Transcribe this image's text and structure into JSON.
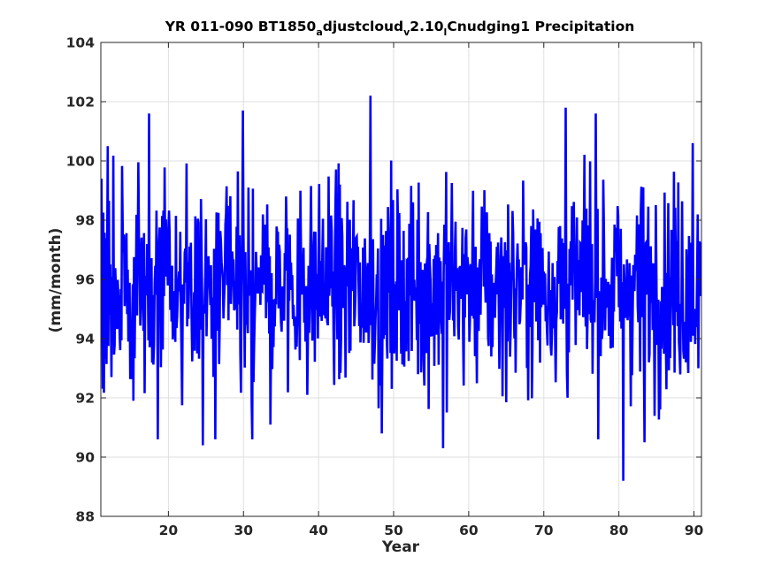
{
  "chart_data": {
    "type": "line",
    "title_parts": {
      "p1": "YR 011-090 BT1850",
      "s1": "a",
      "p2": "djustcloud",
      "s2": "v",
      "p3": "2.10",
      "s3": "l",
      "p4": "Cnudging1 Precipitation"
    },
    "xlabel": "Year",
    "ylabel": "(mm/month)",
    "xlim": [
      11,
      91
    ],
    "ylim": [
      88,
      104
    ],
    "xticks": [
      20,
      30,
      40,
      50,
      60,
      70,
      80,
      90
    ],
    "yticks": [
      88,
      90,
      92,
      94,
      96,
      98,
      100,
      102,
      104
    ],
    "grid": true,
    "line_color": "#0000ff",
    "series": [
      {
        "sampling": "monthly",
        "x_start": 11,
        "x_end": 91,
        "mean": 95.8,
        "notable_points": [
          {
            "x": 11.1,
            "y": 99.4
          },
          {
            "x": 11.9,
            "y": 100.5
          },
          {
            "x": 12.4,
            "y": 92.7
          },
          {
            "x": 15.3,
            "y": 91.9
          },
          {
            "x": 17.4,
            "y": 101.6
          },
          {
            "x": 18.6,
            "y": 90.6
          },
          {
            "x": 24.6,
            "y": 90.4
          },
          {
            "x": 29.9,
            "y": 101.7
          },
          {
            "x": 33.6,
            "y": 91.1
          },
          {
            "x": 46.9,
            "y": 102.2
          },
          {
            "x": 48.4,
            "y": 90.8
          },
          {
            "x": 56.6,
            "y": 90.3
          },
          {
            "x": 72.9,
            "y": 101.8
          },
          {
            "x": 76.9,
            "y": 101.6
          },
          {
            "x": 80.6,
            "y": 89.2
          },
          {
            "x": 83.4,
            "y": 90.5
          },
          {
            "x": 89.8,
            "y": 100.6
          },
          {
            "x": 90.6,
            "y": 93.0
          },
          {
            "x": 91.0,
            "y": 96.0
          }
        ]
      }
    ]
  }
}
